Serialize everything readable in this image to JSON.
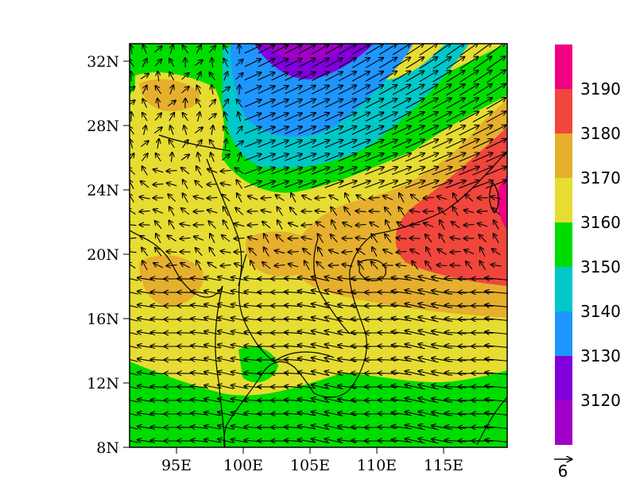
{
  "map": {
    "lat_labels": [
      "32N",
      "28N",
      "24N",
      "20N",
      "16N",
      "12N",
      "8N"
    ],
    "lon_labels": [
      "95E",
      "100E",
      "105E",
      "110E",
      "115E"
    ],
    "lat_range": [
      8,
      33
    ],
    "lon_range": [
      91.5,
      119.5
    ],
    "field_units_shown": "none",
    "wind_vector_reference": "6"
  },
  "colorbar": {
    "labels": [
      "3190",
      "3180",
      "3170",
      "3160",
      "3150",
      "3140",
      "3130",
      "3120"
    ],
    "levels": [
      {
        "range": "<3120",
        "color": "#a000c8"
      },
      {
        "range": "3120-3130",
        "color": "#8200dc"
      },
      {
        "range": "3130-3140",
        "color": "#1e96ff"
      },
      {
        "range": "3140-3150",
        "color": "#00c8c8"
      },
      {
        "range": "3150-3160",
        "color": "#00dc00"
      },
      {
        "range": "3160-3170",
        "color": "#e6dc32"
      },
      {
        "range": "3170-3180",
        "color": "#e6af2d"
      },
      {
        "range": "3180-3190",
        "color": "#f0463c"
      },
      {
        "range": ">3190",
        "color": "#f00082"
      }
    ]
  }
}
